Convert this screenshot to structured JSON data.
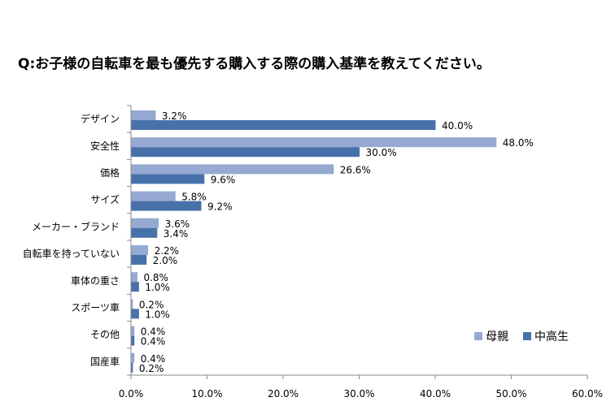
{
  "chart_data": {
    "type": "bar",
    "orientation": "horizontal",
    "title": "Q:お子様の自転車を最も優先する購入する際の購入基準を教えてください。",
    "categories": [
      "デザイン",
      "安全性",
      "価格",
      "サイズ",
      "メーカー・ブランド",
      "自転車を持っていない",
      "車体の重さ",
      "スポーツ車",
      "その他",
      "国産車"
    ],
    "series": [
      {
        "name": "母親",
        "color": "#95a9d2",
        "values": [
          3.2,
          48.0,
          26.6,
          5.8,
          3.6,
          2.2,
          0.8,
          0.2,
          0.4,
          0.4
        ]
      },
      {
        "name": "中高生",
        "color": "#4871a9",
        "values": [
          40.0,
          30.0,
          9.6,
          9.2,
          3.4,
          2.0,
          1.0,
          1.0,
          0.4,
          0.2
        ]
      }
    ],
    "xlim": [
      0,
      60
    ],
    "xticks": [
      0,
      10,
      20,
      30,
      40,
      50,
      60
    ],
    "value_format": "percent_1dp",
    "grid": false,
    "legend_position": "right"
  }
}
